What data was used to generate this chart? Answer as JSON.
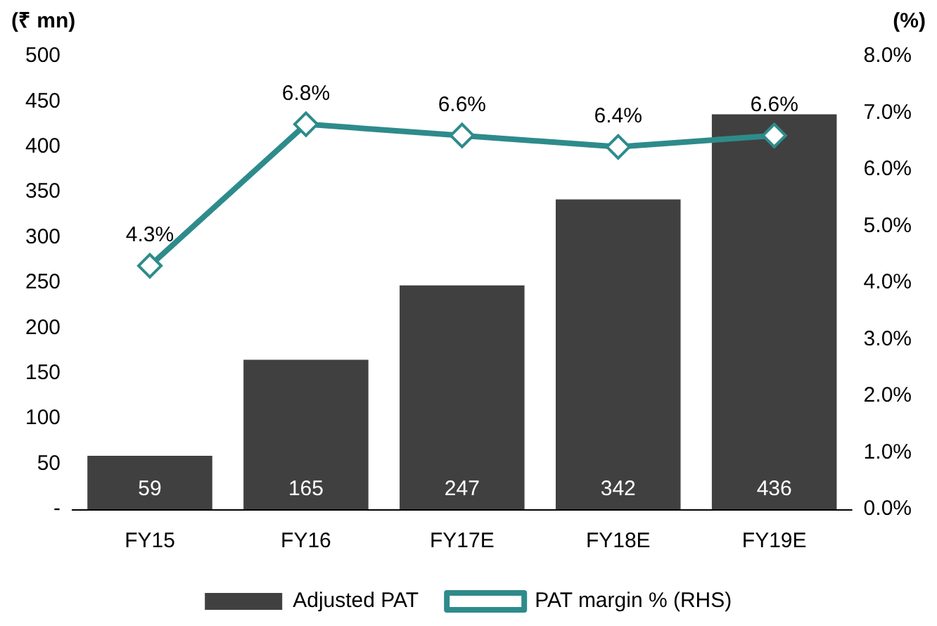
{
  "chart_data": {
    "type": "bar",
    "ylabel": "(₹ mn)",
    "y2label": "(%)",
    "categories": [
      "FY15",
      "FY16",
      "FY17E",
      "FY18E",
      "FY19E"
    ],
    "series": [
      {
        "name": "Adjusted PAT",
        "color": "#404040",
        "values": [
          59,
          165,
          247,
          342,
          436
        ],
        "value_labels": [
          "59",
          "165",
          "247",
          "342",
          "436"
        ]
      },
      {
        "name": "PAT margin % (RHS)",
        "type": "line",
        "axis": "y2",
        "color": "#2e8b8b",
        "marker": "diamond",
        "values": [
          4.3,
          6.8,
          6.6,
          6.4,
          6.6
        ],
        "value_labels": [
          "4.3%",
          "6.8%",
          "6.6%",
          "6.4%",
          "6.6%"
        ]
      }
    ],
    "ylim": [
      0,
      500
    ],
    "yticks": [
      {
        "value": 0,
        "label": "-"
      },
      50,
      100,
      150,
      200,
      250,
      300,
      350,
      400,
      450,
      500
    ],
    "y2lim": [
      0,
      8
    ],
    "y2ticks": [
      {
        "value": 0,
        "label": "0.0%"
      },
      {
        "value": 1,
        "label": "1.0%"
      },
      {
        "value": 2,
        "label": "2.0%"
      },
      {
        "value": 3,
        "label": "3.0%"
      },
      {
        "value": 4,
        "label": "4.0%"
      },
      {
        "value": 5,
        "label": "5.0%"
      },
      {
        "value": 6,
        "label": "6.0%"
      },
      {
        "value": 7,
        "label": "7.0%"
      },
      {
        "value": 8,
        "label": "8.0%"
      }
    ],
    "grid": false,
    "legend": "bottom"
  }
}
